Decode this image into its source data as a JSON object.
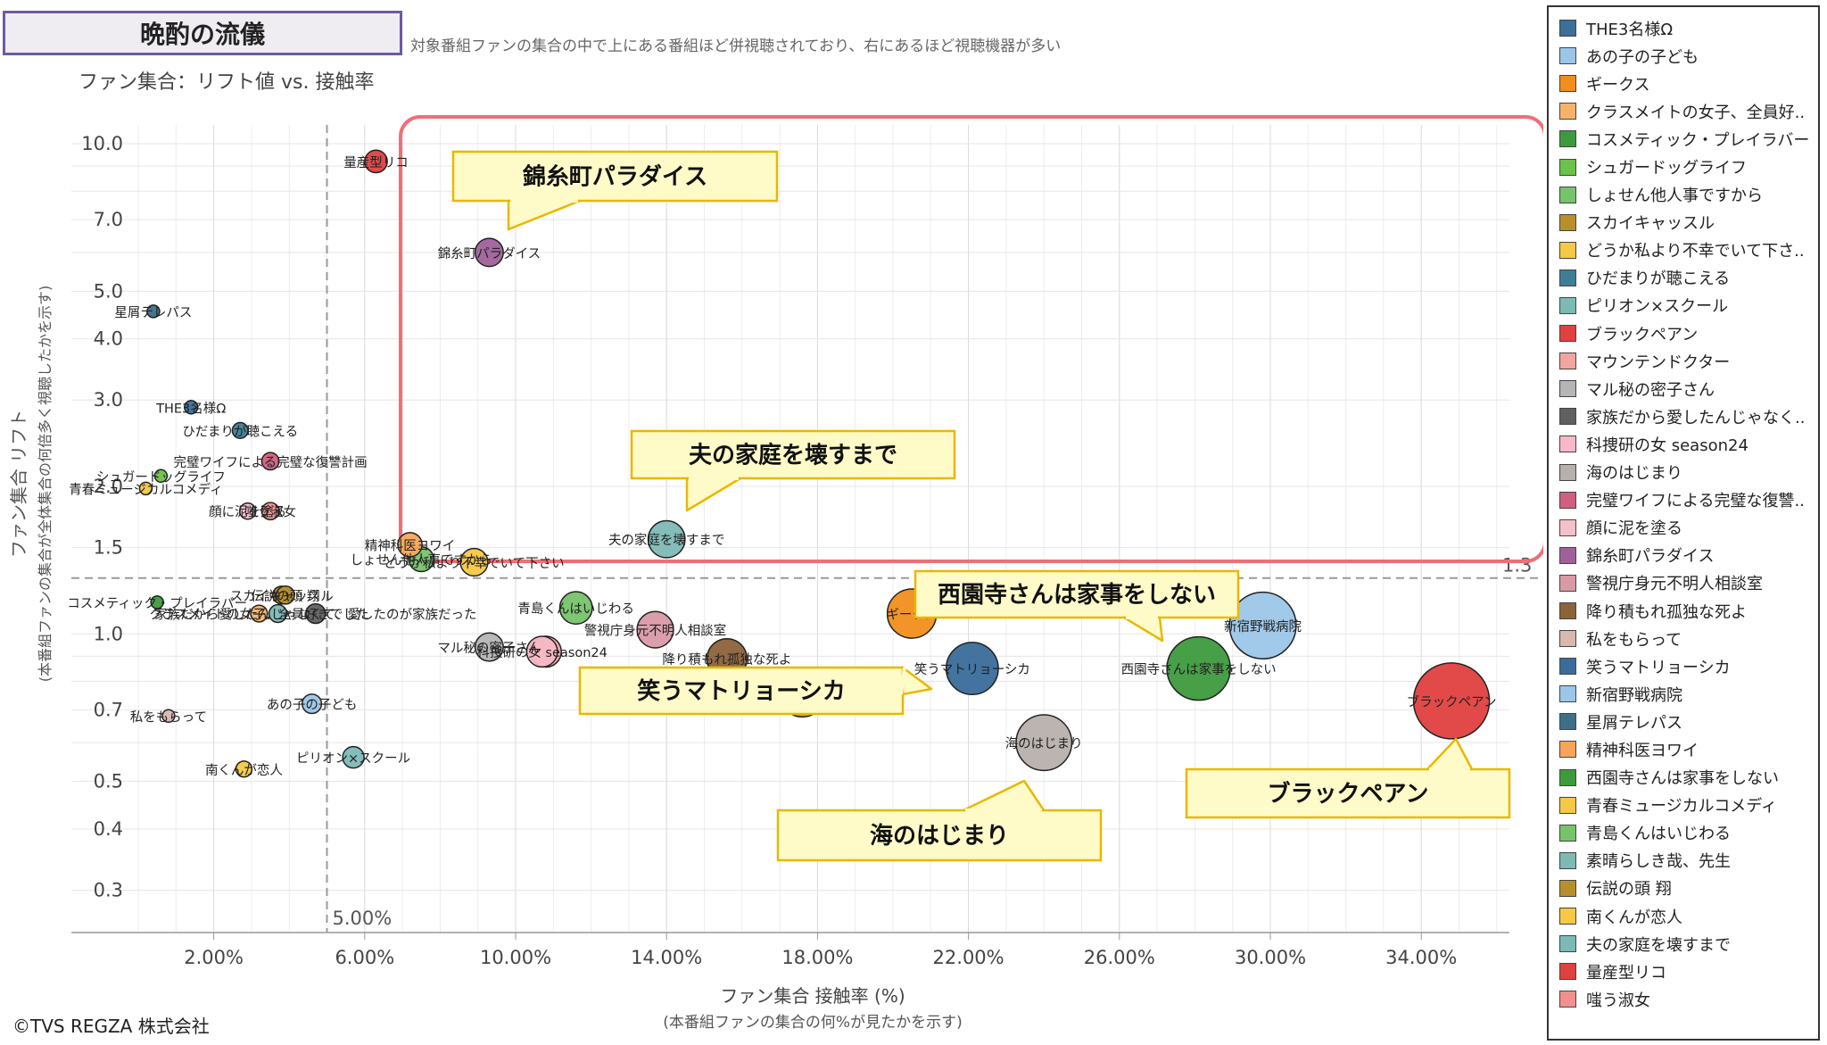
{
  "header": {
    "title": "晩酌の流儀",
    "description": "対象番組ファンの集合の中で上にある番組ほど併視聴されており、右にあるほど視聴機器が多い",
    "subtitle": "ファン集合：リフト値 vs. 接触率",
    "copyright": "©TVS REGZA 株式会社"
  },
  "chart_data": {
    "type": "scatter",
    "title": "ファン集合：リフト値 vs. 接触率",
    "xlabel": "ファン集合 接触率 (%)",
    "xlabel_sub": "(本番組ファンの集合の何%が見たかを示す)",
    "ylabel": "ファン集合 リフト",
    "ylabel_sub": "(本番組ファンの集合が全体集合の何倍多く視聴したかを示す)",
    "x_ticks": [
      "2.00%",
      "6.00%",
      "10.00%",
      "14.00%",
      "18.00%",
      "22.00%",
      "26.00%",
      "30.00%",
      "34.00%"
    ],
    "y_ticks": [
      "10.0",
      "7.0",
      "5.0",
      "4.0",
      "3.0",
      "2.0",
      "1.5",
      "1.0",
      "0.7",
      "0.5",
      "0.4",
      "0.3"
    ],
    "y_scale": "log",
    "xlim": [
      0,
      37.5
    ],
    "ylim": [
      0.25,
      11
    ],
    "grid": true,
    "legend_position": "right",
    "ref_x_label": "5.00%",
    "ref_y_label": "1.3",
    "points": [
      {
        "name": "THE3名様Ω",
        "x": 1.4,
        "y": 2.9,
        "color": "#3d6f99",
        "label": "THE3名様Ω"
      },
      {
        "name": "あの子の子ども",
        "x": 4.6,
        "y": 0.72,
        "color": "#9cc6e8",
        "label": "あの子の子ども"
      },
      {
        "name": "ギークス",
        "x": 20.5,
        "y": 1.1,
        "color": "#f28e1e",
        "label": "ギークス"
      },
      {
        "name": "クラスメイトの女子、全員好..",
        "x": 3.2,
        "y": 1.1,
        "color": "#f5b36a",
        "label": "クラスメイトの女子、全員好きでした"
      },
      {
        "name": "コスメティック・プレイラバー",
        "x": 0.5,
        "y": 1.16,
        "color": "#3d9a3d",
        "label": "コスメティック・プレイラバー"
      },
      {
        "name": "シュガードッグライフ",
        "x": 0.6,
        "y": 2.1,
        "color": "#6cc24a",
        "label": "シュガードッグライフ"
      },
      {
        "name": "しょせん他人事ですから",
        "x": 7.5,
        "y": 1.42,
        "color": "#77c36b",
        "label": "しょせん他人事ですから"
      },
      {
        "name": "スカイキャッスル",
        "x": 3.8,
        "y": 1.2,
        "color": "#b8902b",
        "label": "スカイキャッスル"
      },
      {
        "name": "どうか私より不幸でいて下さ..",
        "x": 8.9,
        "y": 1.4,
        "color": "#f5c945",
        "label": "どうか私より不幸でいて下さい"
      },
      {
        "name": "ひだまりが聴こえる",
        "x": 2.7,
        "y": 2.6,
        "color": "#3f7d95",
        "label": "ひだまりが聴こえる"
      },
      {
        "name": "ピリオン×スクール",
        "x": 5.7,
        "y": 0.56,
        "color": "#7db9b5",
        "label": "ピリオン×スクール"
      },
      {
        "name": "ブラックペアン",
        "x": 34.8,
        "y": 0.73,
        "color": "#e04040",
        "label": "ブラックペアン"
      },
      {
        "name": "マウンテンドクター",
        "x": 10.8,
        "y": 0.92,
        "color": "#f4a3a3",
        "label": ""
      },
      {
        "name": "マル秘の密子さん",
        "x": 9.3,
        "y": 0.94,
        "color": "#b5b5b5",
        "label": "マル秘の密子さん"
      },
      {
        "name": "家族だから愛したんじゃなく..",
        "x": 4.7,
        "y": 1.1,
        "color": "#606060",
        "label": "家族だから愛したんじゃなくて、愛したのが家族だった"
      },
      {
        "name": "科捜研の女 season24",
        "x": 10.7,
        "y": 0.92,
        "color": "#f7b8c7",
        "label": "科捜研の女 season24"
      },
      {
        "name": "海のはじまり",
        "x": 24.0,
        "y": 0.6,
        "color": "#b8b0ac",
        "label": "海のはじまり"
      },
      {
        "name": "完璧ワイフによる完璧な復讐..",
        "x": 3.5,
        "y": 2.25,
        "color": "#d0607f",
        "label": "完璧ワイフによる完璧な復讐計画"
      },
      {
        "name": "顔に泥を塗る",
        "x": 2.9,
        "y": 1.78,
        "color": "#f7bfcc",
        "label": "顔に泥を塗る"
      },
      {
        "name": "錦糸町パラダイス",
        "x": 9.3,
        "y": 6.0,
        "color": "#a0619b",
        "label": "錦糸町パラダイス"
      },
      {
        "name": "警視庁身元不明人相談室",
        "x": 13.7,
        "y": 1.02,
        "color": "#d99aa6",
        "label": "警視庁身元不明人相談室"
      },
      {
        "name": "降り積もれ孤独な死よ",
        "x": 15.6,
        "y": 0.89,
        "color": "#8c6239",
        "label": "降り積もれ孤独な死よ"
      },
      {
        "name": "私をもらって",
        "x": 0.8,
        "y": 0.68,
        "color": "#d9b8b0",
        "label": "私をもらって"
      },
      {
        "name": "笑うマトリョーシカ",
        "x": 22.1,
        "y": 0.85,
        "color": "#3a6c9a",
        "label": "笑うマトリョーシカ"
      },
      {
        "name": "新宿野戦病院",
        "x": 29.8,
        "y": 1.04,
        "color": "#9cc6e8",
        "label": "新宿野戦病院"
      },
      {
        "name": "星屑テレパス",
        "x": 0.4,
        "y": 4.55,
        "color": "#3f6e87",
        "label": "星屑テレパス"
      },
      {
        "name": "精神科医ヨワイ",
        "x": 7.2,
        "y": 1.52,
        "color": "#f5a65b",
        "label": "精神科医ヨワイ"
      },
      {
        "name": "西園寺さんは家事をしない",
        "x": 28.1,
        "y": 0.85,
        "color": "#3d9a3d",
        "label": "西園寺さんは家事をしない"
      },
      {
        "name": "青春ミュージカルコメディ",
        "x": 0.2,
        "y": 1.98,
        "color": "#f5c945",
        "label": "青春ミュージカルコメディ"
      },
      {
        "name": "青島くんはいじわる",
        "x": 11.6,
        "y": 1.13,
        "color": "#77c36b",
        "label": "青島くんはいじわる"
      },
      {
        "name": "素晴らしき哉、先生",
        "x": 3.7,
        "y": 1.1,
        "color": "#7db9b5",
        "label": ""
      },
      {
        "name": "伝説の頭 翔",
        "x": 3.9,
        "y": 1.2,
        "color": "#b8902b",
        "label": "伝説の頭 翔"
      },
      {
        "name": "南くんが恋人",
        "x": 2.8,
        "y": 0.53,
        "color": "#f5c945",
        "label": "南くんが恋人"
      },
      {
        "name": "夫の家庭を壊すまで",
        "x": 14.0,
        "y": 1.56,
        "color": "#7db9b5",
        "label": "夫の家庭を壊すまで"
      },
      {
        "name": "量産型リコ",
        "x": 6.3,
        "y": 9.2,
        "color": "#e04040",
        "label": "量産型リコ"
      },
      {
        "name": "嗤う淑女",
        "x": 3.5,
        "y": 1.78,
        "color": "#f28f8f",
        "label": "嗤う淑女"
      },
      {
        "name": "",
        "x": 17.6,
        "y": 0.75,
        "color": "#b8902b",
        "label": ""
      }
    ]
  },
  "callouts": {
    "kinshicho": "錦糸町パラダイス",
    "otto": "夫の家庭を壊すまで",
    "saionji": "西園寺さんは家事をしない",
    "warau": "笑うマトリョーシカ",
    "umi": "海のはじまり",
    "black": "ブラックペアン"
  },
  "legend": {
    "items": [
      {
        "label": "THE3名様Ω",
        "color": "#3d6f99"
      },
      {
        "label": "あの子の子ども",
        "color": "#9cc6e8"
      },
      {
        "label": "ギークス",
        "color": "#f28e1e"
      },
      {
        "label": "クラスメイトの女子、全員好..",
        "color": "#f5b36a"
      },
      {
        "label": "コスメティック・プレイラバー",
        "color": "#3d9a3d"
      },
      {
        "label": "シュガードッグライフ",
        "color": "#6cc24a"
      },
      {
        "label": "しょせん他人事ですから",
        "color": "#77c36b"
      },
      {
        "label": "スカイキャッスル",
        "color": "#b8902b"
      },
      {
        "label": "どうか私より不幸でいて下さ..",
        "color": "#f5c945"
      },
      {
        "label": "ひだまりが聴こえる",
        "color": "#3f7d95"
      },
      {
        "label": "ピリオン×スクール",
        "color": "#7db9b5"
      },
      {
        "label": "ブラックペアン",
        "color": "#e04040"
      },
      {
        "label": "マウンテンドクター",
        "color": "#f4a3a3"
      },
      {
        "label": "マル秘の密子さん",
        "color": "#b5b5b5"
      },
      {
        "label": "家族だから愛したんじゃなく..",
        "color": "#606060"
      },
      {
        "label": "科捜研の女 season24",
        "color": "#f7b8c7"
      },
      {
        "label": "海のはじまり",
        "color": "#b8b0ac"
      },
      {
        "label": "完璧ワイフによる完璧な復讐..",
        "color": "#d0607f"
      },
      {
        "label": "顔に泥を塗る",
        "color": "#f7bfcc"
      },
      {
        "label": "錦糸町パラダイス",
        "color": "#a0619b"
      },
      {
        "label": "警視庁身元不明人相談室",
        "color": "#d99aa6"
      },
      {
        "label": "降り積もれ孤独な死よ",
        "color": "#8c6239"
      },
      {
        "label": "私をもらって",
        "color": "#d9b8b0"
      },
      {
        "label": "笑うマトリョーシカ",
        "color": "#3a6c9a"
      },
      {
        "label": "新宿野戦病院",
        "color": "#9cc6e8"
      },
      {
        "label": "星屑テレパス",
        "color": "#3f6e87"
      },
      {
        "label": "精神科医ヨワイ",
        "color": "#f5a65b"
      },
      {
        "label": "西園寺さんは家事をしない",
        "color": "#3d9a3d"
      },
      {
        "label": "青春ミュージカルコメディ",
        "color": "#f5c945"
      },
      {
        "label": "青島くんはいじわる",
        "color": "#77c36b"
      },
      {
        "label": "素晴らしき哉、先生",
        "color": "#7db9b5"
      },
      {
        "label": "伝説の頭 翔",
        "color": "#b8902b"
      },
      {
        "label": "南くんが恋人",
        "color": "#f5c945"
      },
      {
        "label": "夫の家庭を壊すまで",
        "color": "#7db9b5"
      },
      {
        "label": "量産型リコ",
        "color": "#e04040"
      },
      {
        "label": "嗤う淑女",
        "color": "#f28f8f"
      }
    ]
  }
}
